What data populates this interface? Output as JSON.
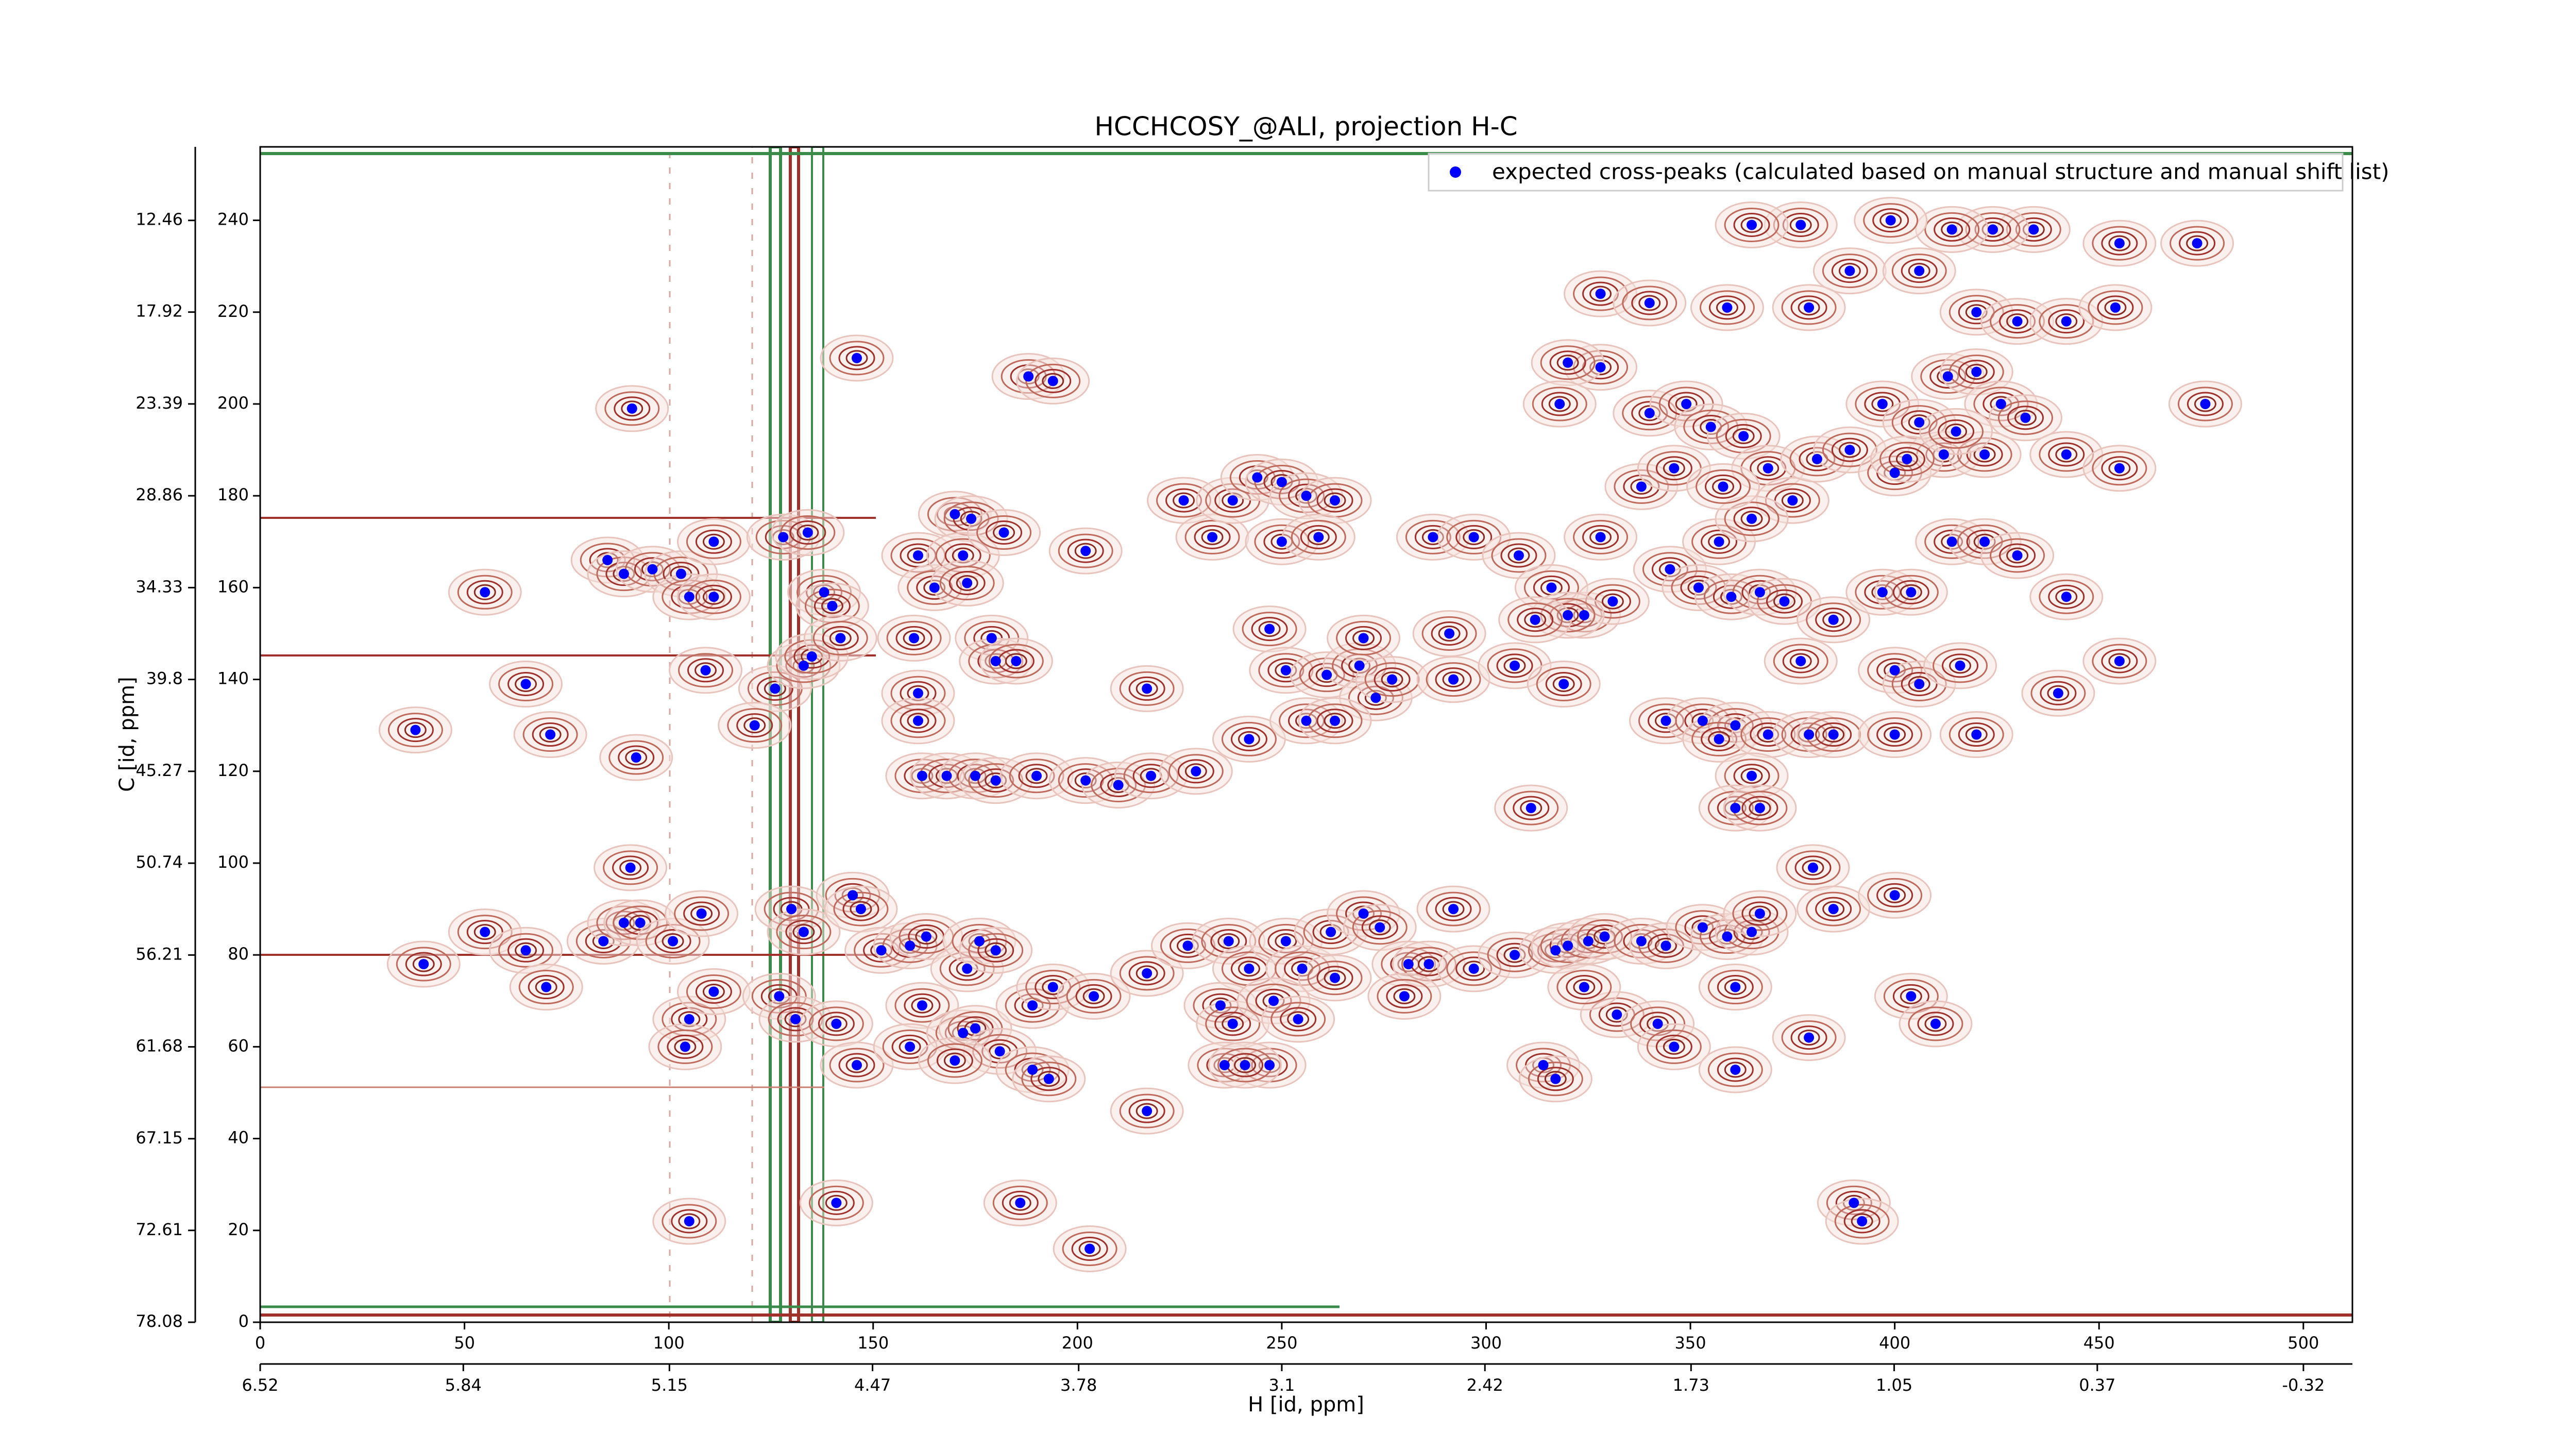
{
  "chart_data": {
    "type": "scatter",
    "title": "HCCHCOSY_@ALI, projection H-C",
    "x_label": "H [id, ppm]",
    "y_label": "C [id, ppm]",
    "xlim": [
      0,
      512
    ],
    "xticks": [
      0,
      50,
      100,
      150,
      200,
      250,
      300,
      350,
      400,
      450,
      500
    ],
    "ylim": [
      0,
      256
    ],
    "yticks": [
      0,
      20,
      40,
      60,
      80,
      100,
      120,
      140,
      160,
      180,
      200,
      220,
      240
    ],
    "x2lim": [
      6.52,
      -0.484
    ],
    "x2ticks": [
      6.52,
      5.84,
      5.15,
      4.47,
      3.78,
      3.1,
      2.42,
      1.73,
      1.05,
      0.37,
      -0.32
    ],
    "y2lim": [
      78.08,
      8.08
    ],
    "y2ticks": [
      78.08,
      72.61,
      67.15,
      61.68,
      56.21,
      50.74,
      45.27,
      39.8,
      34.33,
      28.86,
      23.39,
      17.92,
      12.46
    ],
    "legend": "upper right",
    "series": [
      {
        "name": "expected cross-peaks (calculated based on manual structure and manual shift list)",
        "color": "#0000ff",
        "x": [
          91,
          90.6,
          38,
          55,
          65,
          71,
          92,
          85,
          89,
          96,
          103,
          105,
          111,
          111,
          109,
          126,
          121,
          128,
          134,
          133,
          135,
          138,
          140,
          142,
          146,
          161,
          165,
          170,
          174,
          172,
          173,
          182,
          160,
          161,
          161,
          179,
          180,
          185,
          188,
          194,
          202,
          226,
          217,
          162,
          168,
          175,
          180,
          190,
          202,
          210,
          218,
          229,
          233,
          238,
          244,
          250,
          256,
          263,
          250,
          259,
          247,
          251,
          261,
          269,
          270,
          273,
          277,
          287,
          291,
          292,
          307,
          311,
          319,
          242,
          256,
          263,
          297,
          308,
          316,
          324,
          331,
          320,
          312,
          328,
          338,
          340,
          349,
          355,
          363,
          369,
          375,
          345,
          352,
          360,
          367,
          373,
          357,
          365,
          346,
          358,
          381,
          389,
          397,
          406,
          413,
          420,
          426,
          412,
          422,
          400,
          403,
          415,
          432,
          442,
          455,
          476,
          474,
          455,
          434,
          424,
          414,
          399,
          377,
          365,
          389,
          406,
          420,
          430,
          442,
          454,
          359,
          379,
          328,
          340,
          328,
          320,
          318,
          344,
          353,
          361,
          357,
          369,
          379,
          385,
          400,
          420,
          365,
          361,
          367,
          377,
          400,
          406,
          416,
          440,
          455,
          385,
          397,
          404,
          414,
          422,
          430,
          442,
          40,
          55,
          65,
          70,
          84,
          89,
          93,
          101,
          108,
          130,
          133,
          145,
          147,
          152,
          159,
          163,
          173,
          176,
          180,
          162,
          105,
          104,
          111,
          127,
          131,
          141,
          146,
          159,
          172,
          175,
          181,
          189,
          193,
          170,
          189,
          194,
          204,
          217,
          227,
          237,
          242,
          251,
          255,
          263,
          262,
          270,
          274,
          281,
          286,
          292,
          297,
          307,
          235,
          238,
          248,
          254,
          280,
          236,
          247,
          241,
          217,
          186,
          203,
          317,
          320,
          325,
          329,
          338,
          344,
          353,
          359,
          365,
          367,
          380,
          385,
          400,
          361,
          404,
          410,
          379,
          314,
          317,
          332,
          342,
          346,
          361,
          324,
          390,
          392,
          141,
          105
        ],
        "y": [
          199,
          99,
          129,
          159,
          139,
          128,
          123,
          166,
          163,
          164,
          163,
          158,
          158,
          170,
          142,
          138,
          130,
          171,
          172,
          143,
          145,
          159,
          156,
          149,
          210,
          167,
          160,
          176,
          175,
          167,
          161,
          172,
          149,
          137,
          131,
          149,
          144,
          144,
          206,
          205,
          168,
          179,
          138,
          119,
          119,
          119,
          118,
          119,
          118,
          117,
          119,
          120,
          171,
          179,
          184,
          183,
          180,
          179,
          170,
          171,
          151,
          142,
          141,
          143,
          149,
          136,
          140,
          171,
          150,
          140,
          143,
          112,
          139,
          127,
          131,
          131,
          171,
          167,
          160,
          154,
          157,
          154,
          153,
          171,
          182,
          198,
          200,
          195,
          193,
          186,
          179,
          164,
          160,
          158,
          159,
          157,
          170,
          175,
          186,
          182,
          188,
          190,
          200,
          196,
          206,
          207,
          200,
          189,
          189,
          185,
          188,
          194,
          197,
          189,
          186,
          200,
          235,
          235,
          238,
          238,
          238,
          240,
          239,
          239,
          229,
          229,
          220,
          218,
          218,
          221,
          221,
          221,
          224,
          222,
          208,
          209,
          200,
          131,
          131,
          130,
          127,
          128,
          128,
          128,
          128,
          128,
          119,
          112,
          112,
          144,
          142,
          139,
          143,
          137,
          144,
          153,
          159,
          159,
          170,
          170,
          167,
          158,
          78,
          85,
          81,
          73,
          83,
          87,
          87,
          83,
          89,
          90,
          85,
          93,
          90,
          81,
          82,
          84,
          77,
          83,
          81,
          69,
          66,
          60,
          72,
          71,
          66,
          65,
          56,
          60,
          63,
          64,
          59,
          55,
          53,
          57,
          69,
          73,
          71,
          76,
          82,
          83,
          77,
          83,
          77,
          75,
          85,
          89,
          86,
          78,
          78,
          90,
          77,
          80,
          69,
          65,
          70,
          66,
          71,
          56,
          56,
          56,
          46,
          26,
          16,
          81,
          82,
          83,
          84,
          83,
          82,
          86,
          84,
          85,
          89,
          99,
          90,
          93,
          73,
          71,
          65,
          62,
          56,
          53,
          67,
          65,
          60,
          55,
          73,
          26,
          22,
          26,
          22
        ]
      }
    ]
  }
}
